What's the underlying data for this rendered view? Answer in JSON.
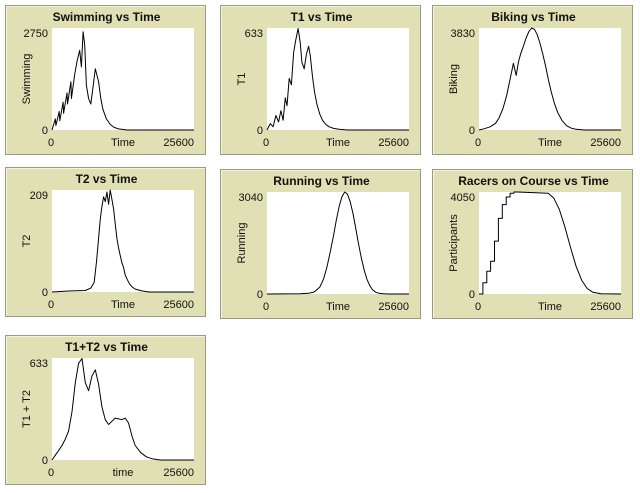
{
  "chart_data": [
    {
      "id": "swimming",
      "type": "line",
      "title": "Swimming vs Time",
      "xlabel": "Time",
      "ylabel": "Swimming",
      "xlim": [
        0,
        25600
      ],
      "ylim": [
        0,
        2750
      ],
      "x_tick_labels": [
        "0",
        "25600"
      ],
      "y_tick_labels": [
        "0",
        "2750"
      ],
      "series": [
        {
          "x": [
            0,
            600,
            700,
            1300,
            1400,
            2000,
            2100,
            2700,
            2800,
            3400,
            3500,
            4100,
            4500,
            5000,
            5300,
            5600,
            5900,
            6200,
            6600,
            7000,
            7400,
            7800,
            8400,
            8800,
            9200,
            9800,
            10500,
            11200,
            12000,
            13500,
            25600
          ],
          "y": [
            0,
            300,
            120,
            500,
            250,
            750,
            450,
            1000,
            700,
            1300,
            850,
            1500,
            1850,
            2150,
            1700,
            2650,
            2300,
            1200,
            850,
            700,
            1150,
            1650,
            1300,
            850,
            550,
            300,
            150,
            70,
            30,
            0,
            0
          ]
        }
      ]
    },
    {
      "id": "t1",
      "type": "line",
      "title": "T1 vs Time",
      "xlabel": "Time",
      "ylabel": "T1",
      "xlim": [
        0,
        25600
      ],
      "ylim": [
        0,
        633
      ],
      "x_tick_labels": [
        "0",
        "25600"
      ],
      "y_tick_labels": [
        "0",
        "633"
      ],
      "series": [
        {
          "x": [
            0,
            600,
            1100,
            1600,
            2100,
            2500,
            2900,
            3300,
            3600,
            4000,
            4400,
            4800,
            5200,
            5600,
            6000,
            6300,
            6700,
            7100,
            7500,
            7800,
            8200,
            8600,
            9000,
            9500,
            10000,
            10600,
            11200,
            12000,
            13000,
            14500,
            25600
          ],
          "y": [
            0,
            40,
            20,
            90,
            50,
            120,
            60,
            200,
            150,
            320,
            280,
            480,
            560,
            630,
            540,
            420,
            380,
            470,
            520,
            460,
            330,
            230,
            160,
            100,
            60,
            35,
            20,
            10,
            5,
            0,
            0
          ]
        }
      ]
    },
    {
      "id": "biking",
      "type": "line",
      "title": "Biking vs Time",
      "xlabel": "Time",
      "ylabel": "Biking",
      "xlim": [
        0,
        25600
      ],
      "ylim": [
        0,
        3830
      ],
      "x_tick_labels": [
        "0",
        "25600"
      ],
      "y_tick_labels": [
        "0",
        "3830"
      ],
      "series": [
        {
          "x": [
            0,
            1000,
            2000,
            3000,
            3600,
            4300,
            5000,
            5700,
            6200,
            6700,
            7100,
            7500,
            8000,
            8500,
            9000,
            9500,
            10000,
            10500,
            11000,
            11500,
            12000,
            12500,
            13000,
            13600,
            14200,
            15000,
            15800,
            16600,
            17500,
            19000,
            25600
          ],
          "y": [
            0,
            50,
            120,
            250,
            450,
            800,
            1300,
            2000,
            2500,
            2050,
            2550,
            2850,
            3150,
            3450,
            3700,
            3830,
            3780,
            3580,
            3250,
            2850,
            2400,
            1900,
            1450,
            1000,
            650,
            350,
            160,
            70,
            25,
            0,
            0
          ]
        }
      ]
    },
    {
      "id": "t2",
      "type": "line",
      "title": "T2 vs Time",
      "xlabel": "Time",
      "ylabel": "T2",
      "xlim": [
        0,
        25600
      ],
      "ylim": [
        0,
        209
      ],
      "x_tick_labels": [
        "0",
        "25600"
      ],
      "y_tick_labels": [
        "0",
        "209"
      ],
      "series": [
        {
          "x": [
            0,
            3000,
            6000,
            7000,
            7600,
            8000,
            8400,
            8700,
            9000,
            9300,
            9600,
            9900,
            10200,
            10500,
            10800,
            11100,
            11400,
            11700,
            12000,
            12300,
            12600,
            12900,
            13200,
            13600,
            14000,
            14500,
            15000,
            15600,
            16300,
            17500,
            25600
          ],
          "y": [
            0,
            2,
            3,
            8,
            20,
            60,
            110,
            150,
            175,
            195,
            185,
            205,
            180,
            209,
            190,
            170,
            140,
            110,
            90,
            75,
            60,
            50,
            35,
            25,
            16,
            10,
            6,
            4,
            2,
            0,
            0
          ]
        }
      ]
    },
    {
      "id": "running",
      "type": "line",
      "title": "Running vs Time",
      "xlabel": "Time",
      "ylabel": "Running",
      "xlim": [
        0,
        25600
      ],
      "ylim": [
        0,
        3040
      ],
      "x_tick_labels": [
        "0",
        "25600"
      ],
      "y_tick_labels": [
        "0",
        "3040"
      ],
      "series": [
        {
          "x": [
            0,
            6000,
            7500,
            8500,
            9500,
            10200,
            10800,
            11400,
            12000,
            12500,
            13000,
            13500,
            14000,
            14500,
            15000,
            15500,
            16000,
            16500,
            17000,
            17500,
            18000,
            18500,
            19000,
            19600,
            20200,
            21000,
            21800,
            22500,
            23500,
            24500,
            25600
          ],
          "y": [
            0,
            10,
            20,
            60,
            200,
            450,
            800,
            1250,
            1750,
            2200,
            2600,
            2900,
            3040,
            2980,
            2750,
            2400,
            1950,
            1500,
            1080,
            720,
            450,
            260,
            130,
            55,
            20,
            5,
            0,
            0,
            0,
            0,
            0
          ]
        }
      ]
    },
    {
      "id": "racers",
      "type": "line",
      "title": "Racers on Course vs Time",
      "xlabel": "Time",
      "ylabel": "Participants",
      "xlim": [
        0,
        25600
      ],
      "ylim": [
        0,
        4050
      ],
      "x_tick_labels": [
        "0",
        "25600"
      ],
      "y_tick_labels": [
        "0",
        "4050"
      ],
      "series": [
        {
          "x": [
            0,
            700,
            700,
            1400,
            1400,
            2100,
            2100,
            2800,
            2800,
            3500,
            3500,
            4200,
            4200,
            4900,
            4900,
            5600,
            5600,
            6300,
            6300,
            7000,
            12500,
            13500,
            14500,
            15500,
            16500,
            17500,
            18500,
            19500,
            20500,
            22000,
            25600
          ],
          "y": [
            0,
            0,
            450,
            450,
            900,
            900,
            1300,
            1300,
            2100,
            2100,
            3000,
            3000,
            3550,
            3550,
            3850,
            3850,
            4000,
            4000,
            4050,
            4050,
            4000,
            3800,
            3350,
            2650,
            1850,
            1100,
            550,
            220,
            70,
            10,
            0
          ]
        }
      ]
    },
    {
      "id": "t1t2",
      "type": "line",
      "title": "T1+T2 vs Time",
      "xlabel": "time",
      "ylabel": "T1 + T2",
      "xlim": [
        0,
        25600
      ],
      "ylim": [
        0,
        633
      ],
      "x_tick_labels": [
        "0",
        "25600"
      ],
      "y_tick_labels": [
        "0",
        "633"
      ],
      "series": [
        {
          "x": [
            0,
            600,
            1200,
            1800,
            2400,
            3000,
            3600,
            4200,
            4800,
            5400,
            6000,
            6600,
            7200,
            7800,
            8400,
            9000,
            9600,
            10200,
            10800,
            11400,
            12000,
            12600,
            13200,
            13800,
            14400,
            15000,
            16000,
            17000,
            18000,
            19500,
            25600
          ],
          "y": [
            0,
            30,
            60,
            90,
            130,
            180,
            300,
            480,
            600,
            630,
            480,
            430,
            520,
            560,
            470,
            330,
            250,
            220,
            240,
            260,
            255,
            250,
            260,
            230,
            150,
            90,
            45,
            20,
            8,
            0,
            0
          ]
        }
      ]
    }
  ]
}
